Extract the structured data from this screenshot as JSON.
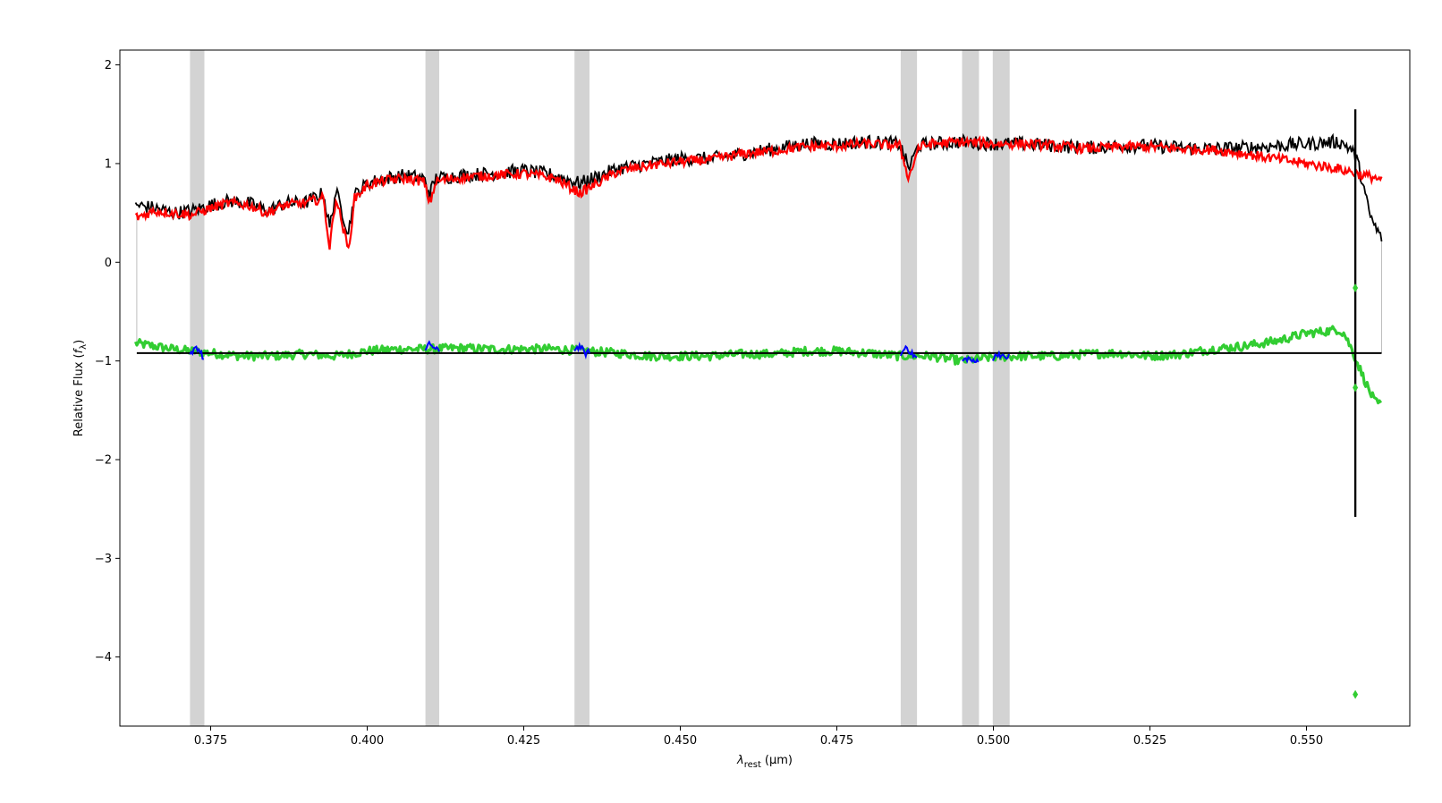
{
  "chart_data": {
    "type": "line",
    "title": "",
    "xlabel": {
      "symbol": "λ",
      "subscript": "rest",
      "unit": "(μm)"
    },
    "ylabel": {
      "text": "Relative Flux (",
      "symbol": "f",
      "subscript": "λ",
      "close": ")"
    },
    "xlim": [
      0.3605,
      0.5665
    ],
    "ylim": [
      -4.7,
      2.15
    ],
    "x_ticks": [
      {
        "value": 0.375,
        "label": "0.375"
      },
      {
        "value": 0.4,
        "label": "0.400"
      },
      {
        "value": 0.425,
        "label": "0.425"
      },
      {
        "value": 0.45,
        "label": "0.450"
      },
      {
        "value": 0.475,
        "label": "0.475"
      },
      {
        "value": 0.5,
        "label": "0.500"
      },
      {
        "value": 0.525,
        "label": "0.525"
      },
      {
        "value": 0.55,
        "label": "0.550"
      }
    ],
    "y_ticks": [
      {
        "value": 2,
        "label": "2"
      },
      {
        "value": 1,
        "label": "1"
      },
      {
        "value": 0,
        "label": "0"
      },
      {
        "value": -1,
        "label": "−1"
      },
      {
        "value": -2,
        "label": "−2"
      },
      {
        "value": -3,
        "label": "−3"
      },
      {
        "value": -4,
        "label": "−4"
      }
    ],
    "masked_regions": [
      [
        0.3717,
        0.374
      ],
      [
        0.4093,
        0.4115
      ],
      [
        0.4331,
        0.4355
      ],
      [
        0.4852,
        0.4878
      ],
      [
        0.495,
        0.4977
      ],
      [
        0.4999,
        0.5026
      ]
    ],
    "colors": {
      "spectrum": "#000000",
      "model": "#ff0000",
      "residuals": "#32cd32",
      "masked_residuals": "#0000ff",
      "zero_line": "#000000",
      "masked_band": "#d3d3d3",
      "edge_line": "#bebebe"
    },
    "residual_offset": -0.92,
    "series": [
      {
        "role": "spectrum",
        "x": [
          0.363,
          0.366,
          0.369,
          0.372,
          0.375,
          0.378,
          0.381,
          0.384,
          0.387,
          0.39,
          0.393,
          0.394,
          0.395,
          0.397,
          0.398,
          0.4,
          0.403,
          0.406,
          0.409,
          0.41,
          0.411,
          0.415,
          0.42,
          0.425,
          0.43,
          0.434,
          0.44,
          0.445,
          0.45,
          0.455,
          0.46,
          0.465,
          0.47,
          0.475,
          0.48,
          0.485,
          0.4865,
          0.488,
          0.49,
          0.495,
          0.5,
          0.505,
          0.51,
          0.515,
          0.52,
          0.525,
          0.53,
          0.535,
          0.54,
          0.545,
          0.55,
          0.555,
          0.556,
          0.557,
          0.558,
          0.559,
          0.56,
          0.561,
          0.562
        ],
        "y": [
          0.58,
          0.55,
          0.5,
          0.52,
          0.58,
          0.62,
          0.6,
          0.52,
          0.6,
          0.6,
          0.7,
          0.35,
          0.72,
          0.3,
          0.68,
          0.8,
          0.85,
          0.88,
          0.85,
          0.7,
          0.85,
          0.88,
          0.9,
          0.93,
          0.88,
          0.8,
          0.95,
          1.0,
          1.05,
          1.05,
          1.1,
          1.15,
          1.2,
          1.2,
          1.22,
          1.2,
          0.95,
          1.18,
          1.2,
          1.22,
          1.2,
          1.2,
          1.18,
          1.16,
          1.18,
          1.18,
          1.16,
          1.15,
          1.16,
          1.18,
          1.2,
          1.22,
          1.2,
          1.15,
          1.05,
          0.8,
          0.5,
          0.35,
          0.25
        ]
      },
      {
        "role": "model",
        "x": [
          0.363,
          0.366,
          0.369,
          0.372,
          0.375,
          0.378,
          0.381,
          0.384,
          0.387,
          0.39,
          0.393,
          0.394,
          0.395,
          0.397,
          0.398,
          0.4,
          0.403,
          0.406,
          0.409,
          0.41,
          0.411,
          0.415,
          0.42,
          0.425,
          0.43,
          0.434,
          0.44,
          0.445,
          0.45,
          0.455,
          0.46,
          0.465,
          0.47,
          0.475,
          0.48,
          0.485,
          0.4865,
          0.488,
          0.49,
          0.495,
          0.5,
          0.505,
          0.51,
          0.515,
          0.52,
          0.525,
          0.53,
          0.535,
          0.54,
          0.545,
          0.55,
          0.555,
          0.556,
          0.557,
          0.558,
          0.559,
          0.56,
          0.561,
          0.562
        ],
        "y": [
          0.45,
          0.52,
          0.5,
          0.48,
          0.55,
          0.6,
          0.58,
          0.5,
          0.58,
          0.6,
          0.65,
          0.15,
          0.66,
          0.12,
          0.65,
          0.78,
          0.83,
          0.85,
          0.82,
          0.6,
          0.82,
          0.86,
          0.88,
          0.9,
          0.85,
          0.7,
          0.92,
          0.98,
          1.02,
          1.04,
          1.1,
          1.13,
          1.17,
          1.18,
          1.2,
          1.18,
          0.85,
          1.16,
          1.2,
          1.22,
          1.2,
          1.2,
          1.18,
          1.15,
          1.17,
          1.17,
          1.15,
          1.14,
          1.1,
          1.05,
          1.0,
          0.95,
          0.93,
          0.92,
          0.9,
          0.88,
          0.87,
          0.86,
          0.82
        ]
      },
      {
        "role": "residuals",
        "x": [
          0.363,
          0.366,
          0.369,
          0.372,
          0.375,
          0.38,
          0.385,
          0.39,
          0.395,
          0.4,
          0.405,
          0.41,
          0.415,
          0.42,
          0.425,
          0.43,
          0.435,
          0.44,
          0.445,
          0.45,
          0.455,
          0.46,
          0.465,
          0.47,
          0.475,
          0.48,
          0.485,
          0.49,
          0.495,
          0.5,
          0.505,
          0.51,
          0.515,
          0.52,
          0.525,
          0.53,
          0.535,
          0.54,
          0.545,
          0.55,
          0.553,
          0.555,
          0.556,
          0.557,
          0.558,
          0.559,
          0.56,
          0.561,
          0.562
        ],
        "y": [
          -0.82,
          -0.85,
          -0.88,
          -0.9,
          -0.92,
          -0.95,
          -0.95,
          -0.93,
          -0.95,
          -0.9,
          -0.88,
          -0.88,
          -0.87,
          -0.88,
          -0.88,
          -0.88,
          -0.9,
          -0.92,
          -0.95,
          -0.95,
          -0.95,
          -0.93,
          -0.93,
          -0.9,
          -0.9,
          -0.92,
          -0.95,
          -0.95,
          -1.0,
          -0.96,
          -0.95,
          -0.95,
          -0.93,
          -0.92,
          -0.95,
          -0.93,
          -0.88,
          -0.85,
          -0.8,
          -0.72,
          -0.7,
          -0.68,
          -0.72,
          -0.85,
          -1.0,
          -1.15,
          -1.3,
          -1.42,
          -1.45
        ]
      }
    ],
    "masked_residual_segments": [
      {
        "x": [
          0.3717,
          0.3725,
          0.3733,
          0.374
        ],
        "y": [
          -0.95,
          -0.85,
          -0.9,
          -1.0
        ]
      },
      {
        "x": [
          0.4093,
          0.41,
          0.4108,
          0.4115
        ],
        "y": [
          -0.9,
          -0.82,
          -0.88,
          -0.9
        ]
      },
      {
        "x": [
          0.4331,
          0.434,
          0.4348,
          0.4355
        ],
        "y": [
          -0.88,
          -0.85,
          -0.93,
          -0.9
        ]
      },
      {
        "x": [
          0.4852,
          0.486,
          0.487,
          0.4878
        ],
        "y": [
          -0.95,
          -0.85,
          -0.93,
          -0.97
        ]
      },
      {
        "x": [
          0.495,
          0.496,
          0.497,
          0.4977
        ],
        "y": [
          -1.0,
          -0.97,
          -1.02,
          -0.98
        ]
      },
      {
        "x": [
          0.4999,
          0.5008,
          0.5017,
          0.5026
        ],
        "y": [
          -0.98,
          -0.92,
          -0.97,
          -0.95
        ]
      }
    ],
    "residual_outliers": [
      {
        "x": 0.5578,
        "y": -0.26
      },
      {
        "x": 0.5578,
        "y": -1.27
      },
      {
        "x": 0.5578,
        "y": -4.38
      }
    ],
    "spike": {
      "x": 0.5578,
      "y_top": 1.55,
      "y_bottom": -2.58
    },
    "left_edge": {
      "x": 0.3632,
      "y_top": 0.45,
      "y_bottom": -0.82
    },
    "right_edge": {
      "x": 0.562,
      "y_top": 0.25,
      "y_bottom": -0.92
    }
  }
}
